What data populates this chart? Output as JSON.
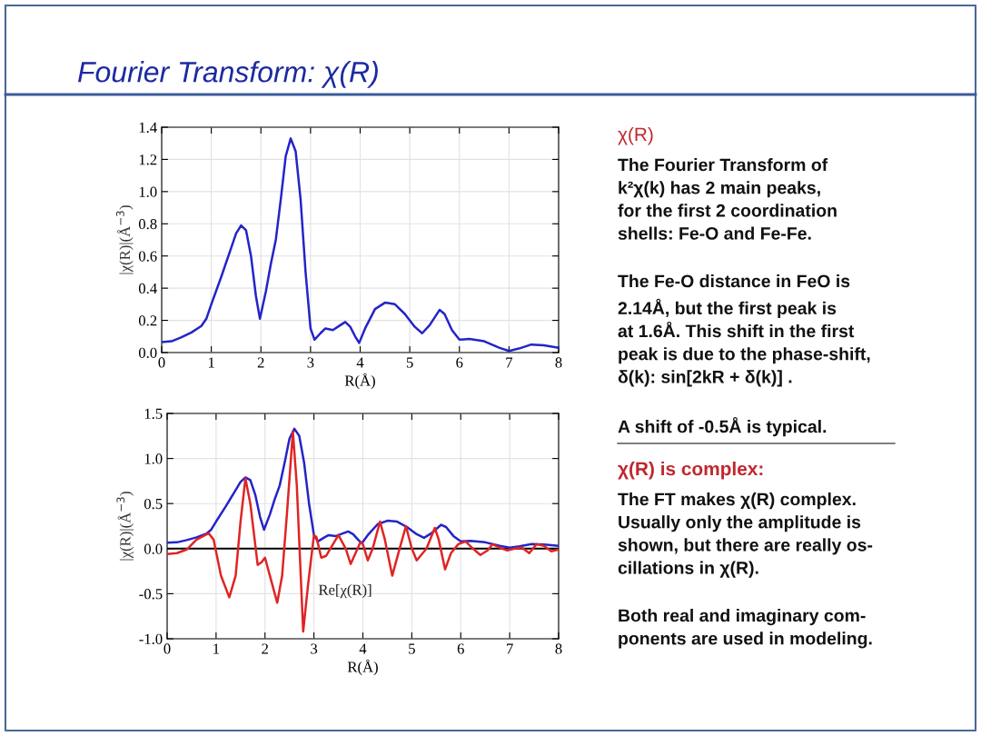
{
  "chart_data": [
    {
      "type": "line",
      "title": "Fourier Transform: χ(R)",
      "xlabel": "R(Å)",
      "ylabel": "|χ(R)|(Å$^{−3}$)",
      "xlim": [
        0,
        8
      ],
      "ylim": [
        0,
        1.4
      ],
      "xticks": [
        0,
        1,
        2,
        3,
        4,
        5,
        6,
        7,
        8
      ],
      "yticks": [
        {
          "value": 0,
          "label": "0.0"
        },
        0.2,
        0.4,
        0.6,
        0.8,
        {
          "value": 1,
          "label": "1.0"
        },
        1.2,
        1.4
      ],
      "grid": true,
      "series": [
        {
          "color": "#2424c8",
          "x": [
            0,
            0.2,
            0.4,
            0.6,
            0.8,
            0.9,
            1.0,
            1.2,
            1.4,
            1.5,
            1.6,
            1.7,
            1.8,
            1.9,
            1.98,
            2.1,
            2.2,
            2.3,
            2.4,
            2.5,
            2.6,
            2.7,
            2.8,
            2.9,
            3.0,
            3.08,
            3.2,
            3.3,
            3.45,
            3.6,
            3.7,
            3.8,
            3.9,
            3.98,
            4.1,
            4.3,
            4.5,
            4.7,
            4.9,
            5.1,
            5.25,
            5.4,
            5.6,
            5.7,
            5.85,
            6.0,
            6.2,
            6.5,
            6.8,
            7.0,
            7.2,
            7.45,
            7.7,
            8.0
          ],
          "values": [
            0.065,
            0.07,
            0.095,
            0.125,
            0.165,
            0.21,
            0.3,
            0.47,
            0.65,
            0.74,
            0.79,
            0.76,
            0.6,
            0.35,
            0.21,
            0.38,
            0.55,
            0.7,
            0.95,
            1.22,
            1.33,
            1.25,
            0.95,
            0.5,
            0.15,
            0.08,
            0.12,
            0.15,
            0.14,
            0.17,
            0.19,
            0.16,
            0.1,
            0.06,
            0.15,
            0.27,
            0.31,
            0.3,
            0.24,
            0.16,
            0.12,
            0.17,
            0.265,
            0.24,
            0.14,
            0.08,
            0.085,
            0.07,
            0.03,
            0.01,
            0.025,
            0.05,
            0.045,
            0.03
          ]
        }
      ]
    },
    {
      "type": "line",
      "xlabel": "R(Å)",
      "ylabel": "|χ(R)|(Å$^{−3}$)",
      "xlim": [
        0,
        8
      ],
      "ylim": [
        -1,
        1.5
      ],
      "xticks": [
        0,
        1,
        2,
        3,
        4,
        5,
        6,
        7,
        8
      ],
      "yticks": [
        {
          "value": -1,
          "label": "-1.0"
        },
        {
          "value": -0.5,
          "label": "-0.5"
        },
        {
          "value": 0,
          "label": "0.0"
        },
        0.5,
        {
          "value": 1,
          "label": "1.0"
        },
        1.5
      ],
      "grid": true,
      "ref_lines": [
        {
          "axis": "y",
          "value": 0,
          "color": "#000000"
        }
      ],
      "series": [
        {
          "color": "#2424c8",
          "x": [
            0,
            0.2,
            0.4,
            0.6,
            0.8,
            0.9,
            1.0,
            1.2,
            1.4,
            1.5,
            1.6,
            1.7,
            1.8,
            1.9,
            1.98,
            2.1,
            2.2,
            2.3,
            2.4,
            2.5,
            2.6,
            2.7,
            2.8,
            2.9,
            3.0,
            3.08,
            3.2,
            3.3,
            3.45,
            3.6,
            3.7,
            3.8,
            3.9,
            3.98,
            4.1,
            4.3,
            4.5,
            4.7,
            4.9,
            5.1,
            5.25,
            5.4,
            5.6,
            5.7,
            5.85,
            6.0,
            6.2,
            6.5,
            6.8,
            7.0,
            7.2,
            7.45,
            7.7,
            8.0
          ],
          "values": [
            0.065,
            0.07,
            0.095,
            0.125,
            0.165,
            0.21,
            0.3,
            0.47,
            0.65,
            0.74,
            0.79,
            0.76,
            0.6,
            0.35,
            0.21,
            0.38,
            0.55,
            0.7,
            0.95,
            1.22,
            1.33,
            1.25,
            0.95,
            0.5,
            0.15,
            0.08,
            0.12,
            0.15,
            0.14,
            0.17,
            0.19,
            0.16,
            0.1,
            0.06,
            0.15,
            0.27,
            0.31,
            0.3,
            0.24,
            0.16,
            0.12,
            0.17,
            0.265,
            0.24,
            0.14,
            0.08,
            0.085,
            0.07,
            0.03,
            0.01,
            0.025,
            0.05,
            0.045,
            0.03
          ]
        },
        {
          "name": "Re[χ(R)]",
          "color": "#e02424",
          "x": [
            0,
            0.2,
            0.4,
            0.6,
            0.85,
            0.95,
            1.1,
            1.27,
            1.4,
            1.5,
            1.6,
            1.7,
            1.85,
            1.93,
            2.0,
            2.1,
            2.25,
            2.35,
            2.45,
            2.57,
            2.65,
            2.78,
            2.88,
            3.0,
            3.05,
            3.15,
            3.25,
            3.5,
            3.65,
            3.75,
            3.85,
            3.95,
            4.0,
            4.1,
            4.2,
            4.35,
            4.45,
            4.6,
            4.75,
            4.88,
            5.0,
            5.1,
            5.3,
            5.47,
            5.55,
            5.68,
            5.8,
            5.95,
            6.1,
            6.25,
            6.4,
            6.55,
            6.65,
            6.8,
            6.95,
            7.1,
            7.25,
            7.4,
            7.55,
            7.7,
            7.85,
            8.0
          ],
          "values": [
            -0.06,
            -0.05,
            -0.01,
            0.1,
            0.17,
            0.1,
            -0.3,
            -0.54,
            -0.3,
            0.3,
            0.78,
            0.5,
            -0.18,
            -0.15,
            -0.1,
            -0.3,
            -0.6,
            -0.3,
            0.4,
            1.3,
            0.7,
            -0.92,
            -0.4,
            0.15,
            0.13,
            -0.1,
            -0.08,
            0.15,
            0.0,
            -0.17,
            -0.05,
            0.07,
            0.05,
            -0.13,
            0.0,
            0.3,
            0.1,
            -0.3,
            0.0,
            0.25,
            0.0,
            -0.13,
            0.0,
            0.23,
            0.1,
            -0.23,
            -0.05,
            0.05,
            0.08,
            0.0,
            -0.07,
            -0.02,
            0.05,
            0.01,
            -0.02,
            0.0,
            0.01,
            -0.05,
            0.05,
            0.03,
            -0.03,
            -0.01
          ]
        }
      ]
    },
    {
      "type": "other",
      "title": "χ(R)",
      "annotations": [
        "The Fourier Transform of\nk²χ(k) has 2 main peaks,\nfor the first 2 coordination\nshells: Fe-O and Fe-Fe.",
        "The Fe-O distance in FeO is\n2.14Å, but the first peak is\nat 1.6Å. This shift in the first\npeak is due to the phase-shift,\nδ(k): sin[2kR + δ(k)] .",
        "A shift of -0.5Å is typical."
      ]
    },
    {
      "type": "other",
      "title": "χ(R) is complex:",
      "annotations": [
        "The FT makes χ(R) complex.\nUsually only the amplitude is\nshown, but there are really os-\ncillations in χ(R).",
        "Both real and imaginary com-\nponents are used in modeling."
      ]
    }
  ]
}
